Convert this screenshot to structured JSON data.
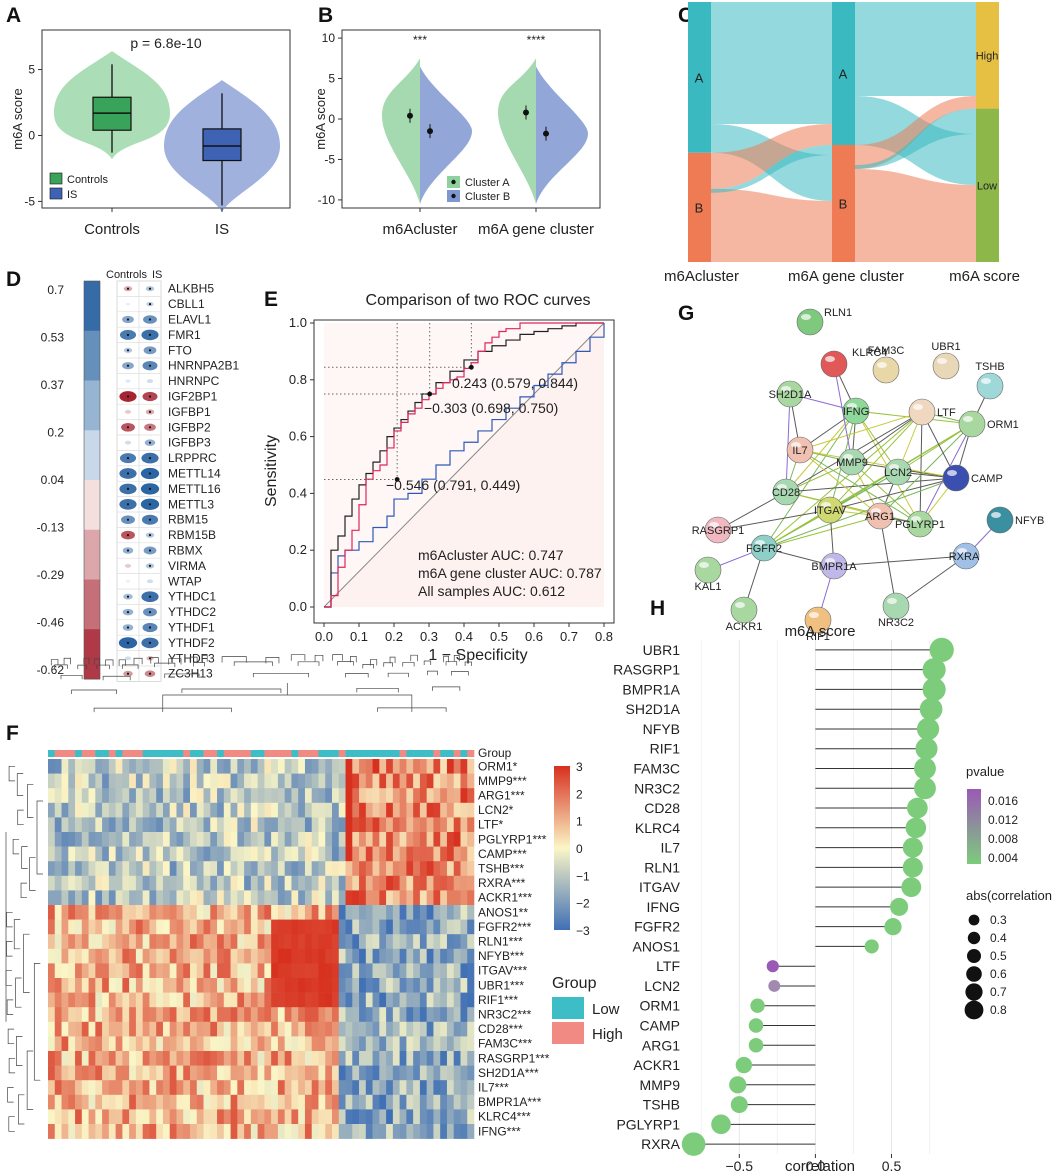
{
  "colors": {
    "controls": "#8fd19e",
    "is": "#7f97d0",
    "cluster_a": "#3bb9c1",
    "cluster_b": "#ef7b55",
    "high": "#e6c042",
    "low": "#8db849",
    "m6acluster_auc": "#e0245e",
    "gene_auc": "#222222",
    "all_auc": "#2f58b8",
    "heat_low": "#3f6fb5",
    "heat_mid": "#fbf6c6",
    "heat_high": "#d7301f",
    "group_low": "#3dbec6",
    "group_high": "#f08a82",
    "pvalue_hi": "#9b59b6",
    "pvalue_lo": "#7ccc7c"
  },
  "panel_labels": [
    "A",
    "B",
    "C",
    "D",
    "E",
    "F",
    "G",
    "H"
  ],
  "chart_data": [
    {
      "panel": "A",
      "type": "violin",
      "ylabel": "m6A score",
      "annotation": "p = 6.8e-10",
      "categories": [
        "Controls",
        "IS"
      ],
      "yticks": [
        -5,
        0,
        5
      ],
      "ylim": [
        -5.5,
        8
      ],
      "box_stats": [
        {
          "name": "Controls",
          "min": -1.3,
          "q1": 0.4,
          "median": 1.7,
          "q3": 2.9,
          "max": 5.4
        },
        {
          "name": "IS",
          "min": -5.3,
          "q1": -1.9,
          "median": -0.8,
          "q3": 0.5,
          "max": 3.2
        }
      ],
      "legend": [
        "Controls",
        "IS"
      ]
    },
    {
      "panel": "B",
      "type": "split-violin",
      "ylabel": "m6A score",
      "categories": [
        "m6Acluster",
        "m6A gene cluster"
      ],
      "significance": [
        "***",
        "****"
      ],
      "yticks": [
        -10,
        -5,
        0,
        5,
        10
      ],
      "ylim": [
        -11,
        11
      ],
      "means": [
        {
          "category": "m6Acluster",
          "cluster_a": 0.4,
          "cluster_b": -1.5
        },
        {
          "category": "m6A gene cluster",
          "cluster_a": 0.8,
          "cluster_b": -1.8
        }
      ],
      "legend": [
        "Cluster A",
        "Cluster B"
      ]
    },
    {
      "panel": "C",
      "type": "sankey",
      "axes": [
        "m6Acluster",
        "m6A gene cluster",
        "m6A score"
      ],
      "nodes": [
        {
          "axis": 0,
          "name": "A",
          "fraction": 0.58
        },
        {
          "axis": 0,
          "name": "B",
          "fraction": 0.42
        },
        {
          "axis": 1,
          "name": "A",
          "fraction": 0.55
        },
        {
          "axis": 1,
          "name": "B",
          "fraction": 0.45
        },
        {
          "axis": 2,
          "name": "High",
          "fraction": 0.41
        },
        {
          "axis": 2,
          "name": "Low",
          "fraction": 0.59
        }
      ]
    },
    {
      "panel": "D",
      "type": "correlation-dotplot",
      "columns": [
        "Controls",
        "IS"
      ],
      "legend_ticks": [
        "0.7",
        "0.53",
        "0.37",
        "0.2",
        "0.04",
        "-0.13",
        "-0.29",
        "-0.46",
        "-0.62"
      ],
      "genes": [
        "ALKBH5",
        "CBLL1",
        "ELAVL1",
        "FMR1",
        "FTO",
        "HNRNPA2B1",
        "HNRNPC",
        "IGF2BP1",
        "IGFBP1",
        "IGFBP2",
        "IGFBP3",
        "LRPPRC",
        "METTL14",
        "METTL16",
        "METTL3",
        "RBM15",
        "RBM15B",
        "RBMX",
        "VIRMA",
        "WTAP",
        "YTHDC1",
        "YTHDC2",
        "YTHDF1",
        "YTHDF2",
        "YTHDF3",
        "ZC3H13"
      ],
      "controls": [
        -0.2,
        0.02,
        0.35,
        0.55,
        0.2,
        0.35,
        0.05,
        -0.6,
        -0.1,
        -0.45,
        0.1,
        0.55,
        0.6,
        0.6,
        0.6,
        0.45,
        -0.45,
        0.3,
        -0.1,
        0.02,
        0.25,
        0.3,
        0.3,
        0.65,
        0.1,
        -0.25
      ],
      "is": [
        0.2,
        0.15,
        0.45,
        0.6,
        0.4,
        0.5,
        0.1,
        -0.5,
        -0.2,
        -0.35,
        0.3,
        0.6,
        0.65,
        0.65,
        0.65,
        0.55,
        0.2,
        0.4,
        0.2,
        0.1,
        0.6,
        0.45,
        0.5,
        0.6,
        -0.15,
        -0.3
      ]
    },
    {
      "panel": "E",
      "type": "line",
      "title": "Comparison of two ROC curves",
      "xlabel": "1 − Specificity",
      "ylabel": "Sensitivity",
      "xticks": [
        "0.0",
        "0.1",
        "0.2",
        "0.3",
        "0.4",
        "0.5",
        "0.6",
        "0.7",
        "0.8"
      ],
      "yticks": [
        "0.0",
        "0.2",
        "0.4",
        "0.6",
        "0.8",
        "1.0"
      ],
      "xlim": [
        0,
        0.8
      ],
      "ylim": [
        0,
        1.02
      ],
      "point_labels": [
        "0.243 (0.579, 0.844)",
        "−0.303 (0.698, 0.750)",
        "−0.546 (0.791, 0.449)"
      ],
      "points": [
        {
          "x": 0.421,
          "y": 0.844
        },
        {
          "x": 0.302,
          "y": 0.75
        },
        {
          "x": 0.209,
          "y": 0.449
        }
      ],
      "series": [
        {
          "name": "m6Acluster",
          "auc_label": "m6Acluster  AUC: 0.747",
          "x": [
            0,
            0.02,
            0.04,
            0.06,
            0.08,
            0.1,
            0.12,
            0.14,
            0.16,
            0.18,
            0.2,
            0.22,
            0.24,
            0.26,
            0.28,
            0.3,
            0.32,
            0.34,
            0.36,
            0.38,
            0.4,
            0.42,
            0.44,
            0.46,
            0.48,
            0.5,
            0.52,
            0.56,
            0.6,
            0.8
          ],
          "y": [
            0,
            0.04,
            0.14,
            0.2,
            0.27,
            0.36,
            0.45,
            0.48,
            0.5,
            0.56,
            0.62,
            0.65,
            0.68,
            0.7,
            0.73,
            0.75,
            0.77,
            0.79,
            0.8,
            0.81,
            0.84,
            0.86,
            0.9,
            0.93,
            0.95,
            0.97,
            0.98,
            1.0,
            1.0,
            1.0
          ]
        },
        {
          "name": "m6A gene cluster",
          "auc_label": "m6A gene cluster AUC: 0.787",
          "x": [
            0,
            0.02,
            0.04,
            0.06,
            0.08,
            0.1,
            0.12,
            0.14,
            0.16,
            0.18,
            0.2,
            0.22,
            0.24,
            0.26,
            0.28,
            0.3,
            0.32,
            0.36,
            0.4,
            0.44,
            0.48,
            0.52,
            0.56,
            0.6,
            0.64,
            0.68,
            0.72,
            0.76,
            0.8
          ],
          "y": [
            0,
            0.2,
            0.25,
            0.32,
            0.38,
            0.43,
            0.47,
            0.51,
            0.55,
            0.6,
            0.63,
            0.66,
            0.69,
            0.72,
            0.75,
            0.75,
            0.79,
            0.83,
            0.87,
            0.9,
            0.92,
            0.94,
            0.96,
            0.97,
            0.98,
            0.99,
            1.0,
            1.0,
            1.0
          ]
        },
        {
          "name": "All samples",
          "auc_label": "All samples  AUC: 0.612",
          "x": [
            0,
            0.02,
            0.04,
            0.06,
            0.1,
            0.14,
            0.18,
            0.2,
            0.24,
            0.28,
            0.32,
            0.36,
            0.4,
            0.44,
            0.48,
            0.52,
            0.56,
            0.6,
            0.64,
            0.68,
            0.72,
            0.76,
            0.8
          ],
          "y": [
            0,
            0.12,
            0.18,
            0.2,
            0.23,
            0.28,
            0.32,
            0.38,
            0.4,
            0.45,
            0.5,
            0.55,
            0.58,
            0.62,
            0.66,
            0.7,
            0.74,
            0.78,
            0.82,
            0.86,
            0.9,
            0.95,
            1.0
          ]
        }
      ]
    },
    {
      "panel": "F",
      "type": "heatmap",
      "group_title": "Group",
      "group_levels": [
        "Low",
        "High"
      ],
      "scale_ticks": [
        "3",
        "2",
        "1",
        "0",
        "−1",
        "−2",
        "−3"
      ],
      "row_labels": [
        "ORM1*",
        "MMP9***",
        "ARG1***",
        "LCN2*",
        "LTF*",
        "PGLYRP1***",
        "CAMP***",
        "TSHB***",
        "RXRA***",
        "ACKR1***",
        "ANOS1**",
        "FGFR2***",
        "RLN1***",
        "NFYB***",
        "ITGAV***",
        "UBR1***",
        "RIF1***",
        "NR3C2***",
        "CD28***",
        "FAM3C***",
        "RASGRP1***",
        "SH2D1A***",
        "IL7***",
        "BMPR1A***",
        "KLRC4***",
        "IFNG***"
      ],
      "n_samples": 63,
      "group_row_label": "Group"
    },
    {
      "panel": "G",
      "type": "network",
      "nodes": [
        "RLN1",
        "KLRC4",
        "FAM3C",
        "UBR1",
        "TSHB",
        "SH2D1A",
        "IFNG",
        "LTF",
        "ORM1",
        "IL7",
        "MMP9",
        "LCN2",
        "CD28",
        "CAMP",
        "NFYB",
        "RASGRP1",
        "ITGAV",
        "ARG1",
        "PGLYRP1",
        "FGFR2",
        "RXRA",
        "BMPR1A",
        "KAL1",
        "ACKR1",
        "RIF1",
        "NR3C2"
      ]
    },
    {
      "panel": "H",
      "type": "lollipop",
      "title": "m6A score",
      "xlabel": "correlation",
      "xticks": [
        "−0.5",
        "0.0",
        "0.5"
      ],
      "xlim": [
        -0.85,
        0.95
      ],
      "labels": [
        "UBR1",
        "RASGRP1",
        "BMPR1A",
        "SH2D1A",
        "NFYB",
        "RIF1",
        "FAM3C",
        "NR3C2",
        "CD28",
        "KLRC4",
        "IL7",
        "RLN1",
        "ITGAV",
        "IFNG",
        "FGFR2",
        "ANOS1",
        "LTF",
        "LCN2",
        "ORM1",
        "CAMP",
        "ARG1",
        "ACKR1",
        "MMP9",
        "TSHB",
        "PGLYRP1",
        "RXRA"
      ],
      "label_colors": [
        "#222",
        "#222",
        "#222",
        "#222",
        "#222",
        "#222",
        "#222",
        "#222",
        "#e02020",
        "#222",
        "#555",
        "#222",
        "#222",
        "#e02020",
        "#222",
        "#222",
        "#e02020",
        "#e02020",
        "#222",
        "#222",
        "#222",
        "#222",
        "#e02020",
        "#222",
        "#222",
        "#222"
      ],
      "correlation": [
        0.83,
        0.78,
        0.78,
        0.76,
        0.74,
        0.73,
        0.72,
        0.72,
        0.67,
        0.66,
        0.64,
        0.64,
        0.63,
        0.55,
        0.51,
        0.37,
        -0.28,
        -0.27,
        -0.38,
        -0.39,
        -0.39,
        -0.47,
        -0.51,
        -0.5,
        -0.62,
        -0.8
      ],
      "pvalue": [
        0.002,
        0.002,
        0.002,
        0.002,
        0.002,
        0.002,
        0.002,
        0.002,
        0.002,
        0.002,
        0.002,
        0.002,
        0.002,
        0.002,
        0.002,
        0.003,
        0.018,
        0.011,
        0.002,
        0.002,
        0.002,
        0.002,
        0.002,
        0.002,
        0.002,
        0.002
      ],
      "pvalue_legend_title": "pvalue",
      "pvalue_ticks": [
        "0.016",
        "0.012",
        "0.008",
        "0.004"
      ],
      "size_legend_title": "abs(correlation)",
      "size_ticks": [
        "0.3",
        "0.4",
        "0.5",
        "0.6",
        "0.7",
        "0.8"
      ]
    }
  ]
}
